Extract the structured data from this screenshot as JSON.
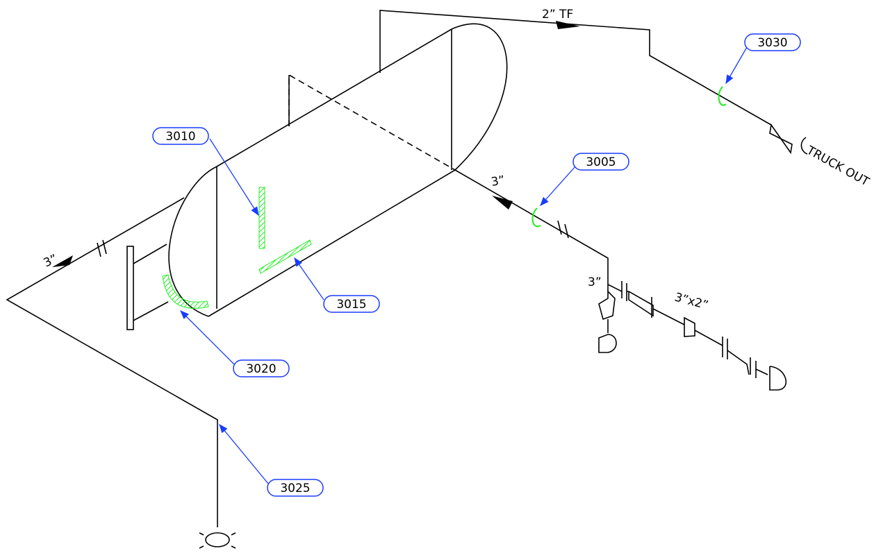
{
  "pipe_labels": {
    "top_line": "2” TF",
    "truck_out": "TRUCK OUT",
    "right_line": "3”",
    "left_line": "3”",
    "drain": "3”",
    "reducer": "3”x2”"
  },
  "callouts": [
    {
      "label": "3030"
    },
    {
      "label": "3010"
    },
    {
      "label": "3005"
    },
    {
      "label": "3015"
    },
    {
      "label": "3020"
    },
    {
      "label": "3025"
    }
  ]
}
